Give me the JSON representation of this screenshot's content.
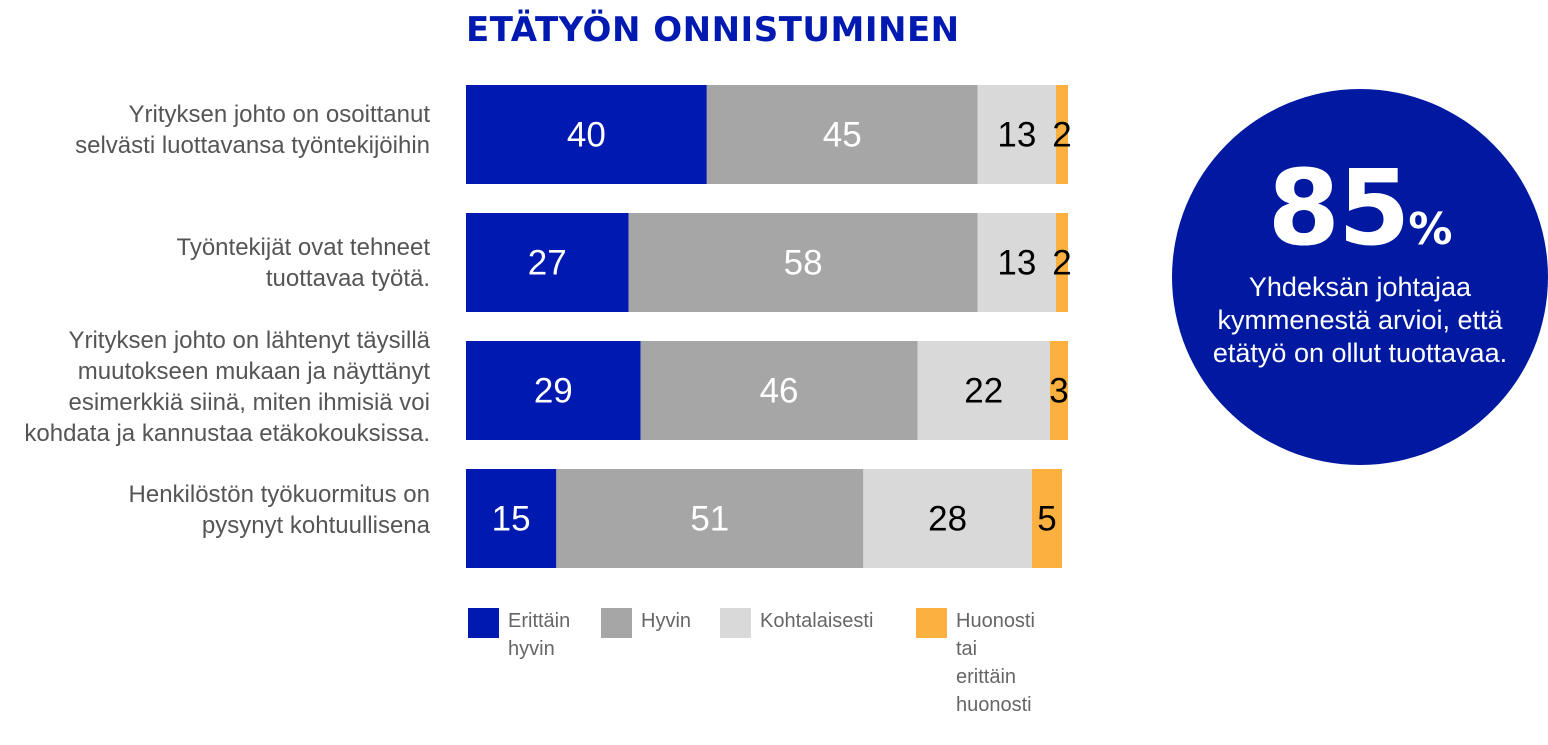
{
  "colors": {
    "title": "#0019b0",
    "circle": "#0019a0",
    "series": [
      "#0019b0",
      "#a6a6a6",
      "#d9d9d9",
      "#fbb040"
    ],
    "value_text": [
      "#ffffff",
      "#ffffff",
      "#000000",
      "#000000"
    ]
  },
  "chart_data": {
    "type": "bar",
    "orientation": "horizontal",
    "stacked": true,
    "title": "ETÄTYÖN ONNISTUMINEN",
    "xlim": [
      0,
      100
    ],
    "grid": false,
    "legend_position": "bottom",
    "categories": [
      "Yrityksen johto on osoittanut selvästi luottavansa työntekijöihin",
      "Työntekijät ovat tehneet tuottavaa työtä.",
      "Yrityksen johto on lähtenyt täysillä muutokseen mukaan ja näyttänyt esimerkkiä siinä, miten ihmisiä voi kohdata ja kannustaa etäkokouksissa.",
      "Henkilöstön työkuormitus on pysynyt kohtuullisena"
    ],
    "series": [
      {
        "name": "Erittäin hyvin",
        "values": [
          40,
          27,
          29,
          15
        ]
      },
      {
        "name": "Hyvin",
        "values": [
          45,
          58,
          46,
          51
        ]
      },
      {
        "name": "Kohtalaisesti",
        "values": [
          13,
          13,
          22,
          28
        ]
      },
      {
        "name": "Huonosti tai erittäin huonosti",
        "values": [
          2,
          2,
          3,
          5
        ]
      }
    ]
  },
  "row_labels": [
    "Yrityksen johto on osoittanut\nselvästi luottavansa työntekijöihin",
    "Työntekijät ovat tehneet\ntuottavaa työtä.",
    "Yrityksen johto on lähtenyt täysillä\nmuutokseen mukaan ja näyttänyt\nesimerkkiä siinä, miten ihmisiä voi\nkohdata ja kannustaa etäkokouksissa.",
    "Henkilöstön työkuormitus on\npysynyt kohtuullisena"
  ],
  "legend": [
    {
      "label": "Erittäin\nhyvin"
    },
    {
      "label": "Hyvin"
    },
    {
      "label": "Kohtalaisesti"
    },
    {
      "label": "Huonosti tai\nerittäin huonosti"
    }
  ],
  "callout": {
    "number": "85",
    "unit": "%",
    "text": "Yhdeksän johtajaa kymmenestä arvioi, että etätyö on ollut tuottavaa."
  }
}
